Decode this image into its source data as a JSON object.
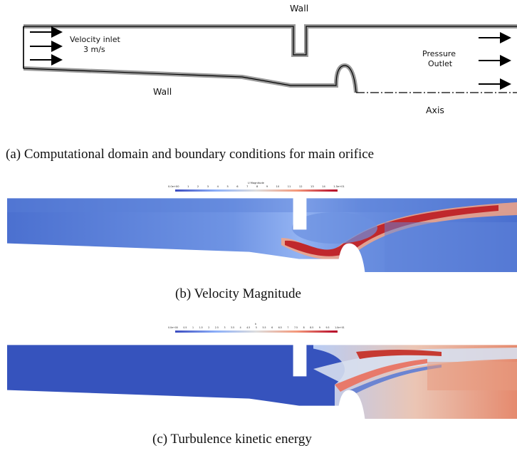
{
  "panel_a": {
    "wall_top": "Wall",
    "wall_bottom": "Wall",
    "inlet_line1": "Velocity inlet",
    "inlet_line2": "3 m/s",
    "outlet_line1": "Pressure",
    "outlet_line2": "Outlet",
    "axis": "Axis",
    "caption": "(a) Computational domain and boundary conditions for main orifice"
  },
  "panel_b": {
    "colorbar_title": "U Magnitude",
    "colorbar_ticks": [
      "0.0e+00",
      "1",
      "2",
      "3",
      "4",
      "5",
      "6",
      "7",
      "8",
      "9",
      "10",
      "11",
      "12",
      "13",
      "14",
      "1.5e+01"
    ],
    "caption": "(b) Velocity Magnitude"
  },
  "panel_c": {
    "colorbar_title": "k",
    "colorbar_ticks": [
      "0.0e+00",
      "0.5",
      "1",
      "1.5",
      "2",
      "2.5",
      "3",
      "3.5",
      "4",
      "4.5",
      "5",
      "5.5",
      "6",
      "6.5",
      "7",
      "7.5",
      "8",
      "8.5",
      "9",
      "9.5",
      "1.0e+01"
    ],
    "caption": "(c) Turbulence kinetic energy"
  },
  "colors": {
    "wall_gray": "#9a9a9a",
    "cool": "#3b4cc0",
    "mid": "#dddddd",
    "warm": "#b40426"
  }
}
